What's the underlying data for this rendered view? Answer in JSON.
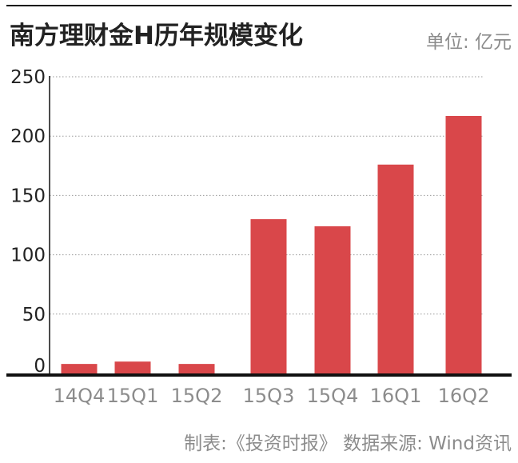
{
  "chart_data": {
    "type": "bar",
    "title": "南方理财金H历年规模变化",
    "unit_label": "单位: 亿元",
    "categories": [
      "14Q4",
      "15Q1",
      "15Q2",
      "15Q3",
      "15Q4",
      "16Q1",
      "16Q2"
    ],
    "values": [
      8,
      10,
      8,
      130,
      124,
      176,
      217
    ],
    "ylim": [
      0,
      250
    ],
    "yticks": [
      0,
      50,
      100,
      150,
      200,
      250
    ],
    "grid": true,
    "source": "制表:《投资时报》 数据来源: Wind资讯"
  },
  "colors": {
    "bar": "#d9474a",
    "text": "#222222",
    "muted": "#8c8c8c",
    "grid": "#9a9a9a",
    "axis": "#111111"
  }
}
